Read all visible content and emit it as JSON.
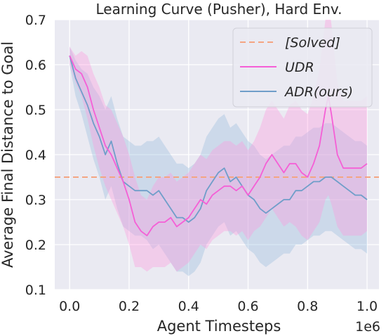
{
  "chart_data": {
    "type": "line",
    "title": "Learning Curve (Pusher), Hard Env.",
    "xlabel": "Agent Timesteps",
    "ylabel": "Average Final Distance to Goal",
    "x_offset_text": "1e6",
    "xlim": [
      -0.05,
      1.04
    ],
    "ylim": [
      0.1,
      0.7
    ],
    "xticks": [
      0.0,
      0.2,
      0.4,
      0.6,
      0.8,
      1.0
    ],
    "xtick_labels": [
      "0.0",
      "0.2",
      "0.4",
      "0.6",
      "0.8",
      "1.0"
    ],
    "yticks": [
      0.1,
      0.2,
      0.3,
      0.4,
      0.5,
      0.6,
      0.7
    ],
    "ytick_labels": [
      "0.1",
      "0.2",
      "0.3",
      "0.4",
      "0.5",
      "0.6",
      "0.7"
    ],
    "grid": true,
    "legend_position": "top-right",
    "reference_line": {
      "name": "[Solved]",
      "y": 0.35,
      "color": "#f4a582",
      "style": "dashed"
    },
    "series": [
      {
        "name": "UDR",
        "color": "#f55fd6",
        "x": [
          0.0,
          0.02,
          0.04,
          0.06,
          0.08,
          0.1,
          0.12,
          0.14,
          0.16,
          0.18,
          0.2,
          0.22,
          0.24,
          0.26,
          0.28,
          0.3,
          0.32,
          0.34,
          0.36,
          0.38,
          0.4,
          0.42,
          0.44,
          0.46,
          0.48,
          0.5,
          0.52,
          0.54,
          0.56,
          0.58,
          0.6,
          0.62,
          0.64,
          0.66,
          0.68,
          0.7,
          0.72,
          0.74,
          0.76,
          0.78,
          0.8,
          0.82,
          0.84,
          0.86,
          0.87,
          0.88,
          0.9,
          0.92,
          0.94,
          0.96,
          0.98,
          1.0
        ],
        "values": [
          0.62,
          0.59,
          0.58,
          0.55,
          0.5,
          0.46,
          0.42,
          0.4,
          0.37,
          0.34,
          0.3,
          0.25,
          0.23,
          0.22,
          0.24,
          0.25,
          0.25,
          0.26,
          0.24,
          0.25,
          0.26,
          0.28,
          0.3,
          0.29,
          0.31,
          0.32,
          0.33,
          0.33,
          0.32,
          0.33,
          0.31,
          0.33,
          0.35,
          0.38,
          0.4,
          0.38,
          0.36,
          0.38,
          0.38,
          0.36,
          0.35,
          0.38,
          0.42,
          0.5,
          0.53,
          0.49,
          0.4,
          0.37,
          0.37,
          0.37,
          0.37,
          0.38
        ],
        "band_halfwidth": [
          0.02,
          0.03,
          0.05,
          0.07,
          0.08,
          0.09,
          0.09,
          0.1,
          0.1,
          0.1,
          0.1,
          0.1,
          0.08,
          0.08,
          0.09,
          0.1,
          0.1,
          0.1,
          0.1,
          0.1,
          0.1,
          0.1,
          0.1,
          0.1,
          0.1,
          0.1,
          0.1,
          0.1,
          0.1,
          0.1,
          0.1,
          0.1,
          0.11,
          0.12,
          0.12,
          0.12,
          0.12,
          0.13,
          0.14,
          0.14,
          0.14,
          0.15,
          0.17,
          0.2,
          0.22,
          0.2,
          0.16,
          0.15,
          0.15,
          0.15,
          0.15,
          0.15
        ]
      },
      {
        "name": "ADR(ours)",
        "color": "#6f9ec9",
        "x": [
          0.0,
          0.02,
          0.04,
          0.06,
          0.08,
          0.1,
          0.12,
          0.14,
          0.16,
          0.18,
          0.2,
          0.22,
          0.24,
          0.26,
          0.28,
          0.3,
          0.32,
          0.34,
          0.36,
          0.38,
          0.4,
          0.42,
          0.44,
          0.46,
          0.48,
          0.5,
          0.52,
          0.54,
          0.56,
          0.58,
          0.6,
          0.62,
          0.64,
          0.66,
          0.68,
          0.7,
          0.72,
          0.74,
          0.76,
          0.78,
          0.8,
          0.82,
          0.84,
          0.86,
          0.88,
          0.9,
          0.92,
          0.94,
          0.96,
          0.98,
          1.0
        ],
        "values": [
          0.62,
          0.57,
          0.54,
          0.51,
          0.47,
          0.44,
          0.4,
          0.43,
          0.38,
          0.34,
          0.33,
          0.32,
          0.32,
          0.32,
          0.31,
          0.32,
          0.3,
          0.28,
          0.26,
          0.26,
          0.25,
          0.26,
          0.28,
          0.32,
          0.34,
          0.36,
          0.37,
          0.34,
          0.35,
          0.33,
          0.31,
          0.3,
          0.28,
          0.27,
          0.28,
          0.29,
          0.3,
          0.3,
          0.32,
          0.32,
          0.33,
          0.34,
          0.34,
          0.35,
          0.35,
          0.34,
          0.33,
          0.32,
          0.31,
          0.31,
          0.3
        ],
        "band_halfwidth": [
          0.02,
          0.04,
          0.05,
          0.07,
          0.08,
          0.09,
          0.1,
          0.1,
          0.1,
          0.1,
          0.1,
          0.1,
          0.1,
          0.11,
          0.12,
          0.12,
          0.12,
          0.12,
          0.12,
          0.12,
          0.12,
          0.12,
          0.12,
          0.12,
          0.12,
          0.12,
          0.12,
          0.12,
          0.12,
          0.12,
          0.12,
          0.12,
          0.12,
          0.12,
          0.12,
          0.12,
          0.12,
          0.12,
          0.12,
          0.12,
          0.12,
          0.12,
          0.12,
          0.12,
          0.12,
          0.12,
          0.12,
          0.12,
          0.12,
          0.12,
          0.12
        ]
      }
    ]
  }
}
